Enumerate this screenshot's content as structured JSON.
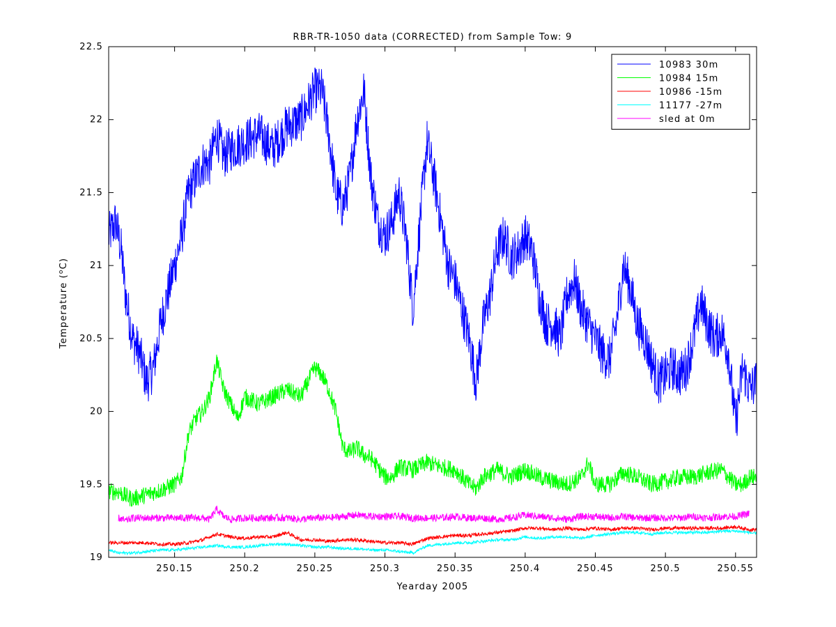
{
  "chart_data": {
    "type": "line",
    "title": "RBR-TR-1050 data (CORRECTED) from Sample Tow: 9",
    "xlabel": "Yearday 2005",
    "ylabel_main": "Temperature (",
    "ylabel_sup": "o",
    "ylabel_end": "C)",
    "xlim": [
      250.103,
      250.565
    ],
    "ylim": [
      19.0,
      22.5
    ],
    "x_ticks": [
      {
        "value": 250.15,
        "label": "250.15"
      },
      {
        "value": 250.2,
        "label": "250.2"
      },
      {
        "value": 250.25,
        "label": "250.25"
      },
      {
        "value": 250.3,
        "label": "250.3"
      },
      {
        "value": 250.35,
        "label": "250.35"
      },
      {
        "value": 250.4,
        "label": "250.4"
      },
      {
        "value": 250.45,
        "label": "250.45"
      },
      {
        "value": 250.5,
        "label": "250.5"
      },
      {
        "value": 250.55,
        "label": "250.55"
      }
    ],
    "y_ticks": [
      {
        "value": 19.0,
        "label": "19"
      },
      {
        "value": 19.5,
        "label": "19.5"
      },
      {
        "value": 20.0,
        "label": "20"
      },
      {
        "value": 20.5,
        "label": "20.5"
      },
      {
        "value": 21.0,
        "label": "21"
      },
      {
        "value": 21.5,
        "label": "21.5"
      },
      {
        "value": 22.0,
        "label": "22"
      },
      {
        "value": 22.5,
        "label": "22.5"
      }
    ],
    "grid": false,
    "legend_position": "top-right",
    "series": [
      {
        "name": "10983 30m",
        "color": "#0000ff",
        "noise": 0.16,
        "x": [
          250.103,
          250.108,
          250.112,
          250.115,
          250.12,
          250.125,
          250.13,
          250.135,
          250.14,
          250.145,
          250.15,
          250.155,
          250.16,
          250.165,
          250.17,
          250.175,
          250.18,
          250.185,
          250.19,
          250.2,
          250.21,
          250.22,
          250.23,
          250.24,
          250.25,
          250.255,
          250.26,
          250.265,
          250.27,
          250.275,
          250.28,
          250.285,
          250.29,
          250.295,
          250.3,
          250.305,
          250.31,
          250.315,
          250.32,
          250.325,
          250.33,
          250.335,
          250.34,
          250.345,
          250.35,
          250.355,
          250.36,
          250.365,
          250.37,
          250.375,
          250.38,
          250.385,
          250.39,
          250.395,
          250.4,
          250.405,
          250.41,
          250.415,
          250.42,
          250.425,
          250.43,
          250.435,
          250.44,
          250.445,
          250.45,
          250.455,
          250.46,
          250.465,
          250.47,
          250.475,
          250.48,
          250.485,
          250.49,
          250.495,
          250.5,
          250.505,
          250.51,
          250.515,
          250.52,
          250.525,
          250.53,
          250.535,
          250.54,
          250.545,
          250.55,
          250.555,
          250.56,
          250.565
        ],
        "y": [
          21.2,
          21.3,
          21.1,
          20.8,
          20.5,
          20.4,
          20.2,
          20.3,
          20.6,
          20.8,
          21.0,
          21.2,
          21.5,
          21.6,
          21.7,
          21.7,
          21.9,
          21.75,
          21.8,
          21.85,
          21.9,
          21.8,
          21.95,
          22.0,
          22.2,
          22.2,
          21.9,
          21.5,
          21.4,
          21.6,
          22.0,
          22.2,
          21.6,
          21.3,
          21.2,
          21.3,
          21.5,
          21.2,
          20.7,
          21.3,
          21.85,
          21.6,
          21.3,
          21.0,
          20.9,
          20.7,
          20.5,
          20.2,
          20.6,
          20.8,
          21.1,
          21.2,
          21.05,
          21.1,
          21.2,
          21.1,
          20.8,
          20.6,
          20.6,
          20.5,
          20.8,
          20.9,
          20.7,
          20.6,
          20.5,
          20.4,
          20.35,
          20.6,
          21.0,
          20.85,
          20.6,
          20.5,
          20.35,
          20.2,
          20.25,
          20.3,
          20.25,
          20.3,
          20.5,
          20.75,
          20.6,
          20.5,
          20.55,
          20.4,
          19.9,
          20.3,
          20.15,
          20.2
        ]
      },
      {
        "name": "10984 15m",
        "color": "#00ff00",
        "noise": 0.06,
        "x": [
          250.103,
          250.11,
          250.115,
          250.12,
          250.13,
          250.14,
          250.15,
          250.155,
          250.16,
          250.165,
          250.17,
          250.175,
          250.18,
          250.185,
          250.19,
          250.195,
          250.2,
          250.21,
          250.22,
          250.23,
          250.24,
          250.25,
          250.255,
          250.26,
          250.265,
          250.27,
          250.275,
          250.28,
          250.285,
          250.29,
          250.3,
          250.305,
          250.31,
          250.32,
          250.33,
          250.34,
          250.35,
          250.36,
          250.365,
          250.37,
          250.38,
          250.39,
          250.4,
          250.41,
          250.42,
          250.43,
          250.44,
          250.445,
          250.45,
          250.46,
          250.47,
          250.48,
          250.49,
          250.5,
          250.51,
          250.52,
          250.53,
          250.54,
          250.55,
          250.555,
          250.56,
          250.565
        ],
        "y": [
          19.45,
          19.45,
          19.42,
          19.4,
          19.43,
          19.46,
          19.5,
          19.55,
          19.85,
          19.95,
          20.0,
          20.1,
          20.35,
          20.15,
          20.05,
          19.95,
          20.1,
          20.05,
          20.1,
          20.15,
          20.1,
          20.3,
          20.25,
          20.15,
          20.0,
          19.75,
          19.72,
          19.75,
          19.7,
          19.68,
          19.55,
          19.55,
          19.62,
          19.6,
          19.65,
          19.62,
          19.6,
          19.5,
          19.47,
          19.55,
          19.6,
          19.55,
          19.6,
          19.55,
          19.52,
          19.5,
          19.55,
          19.65,
          19.5,
          19.5,
          19.58,
          19.55,
          19.5,
          19.52,
          19.55,
          19.55,
          19.58,
          19.6,
          19.5,
          19.5,
          19.55,
          19.55
        ]
      },
      {
        "name": "10986 -15m",
        "color": "#ff0000",
        "noise": 0.012,
        "x": [
          250.103,
          250.11,
          250.12,
          250.13,
          250.14,
          250.15,
          250.16,
          250.17,
          250.18,
          250.19,
          250.2,
          250.21,
          250.22,
          250.23,
          250.24,
          250.25,
          250.26,
          250.27,
          250.28,
          250.29,
          250.3,
          250.31,
          250.32,
          250.33,
          250.34,
          250.35,
          250.36,
          250.37,
          250.38,
          250.39,
          250.4,
          250.41,
          250.42,
          250.43,
          250.44,
          250.45,
          250.46,
          250.47,
          250.48,
          250.49,
          250.5,
          250.51,
          250.52,
          250.53,
          250.54,
          250.55,
          250.56,
          250.565
        ],
        "y": [
          19.1,
          19.1,
          19.1,
          19.1,
          19.09,
          19.09,
          19.1,
          19.12,
          19.16,
          19.14,
          19.13,
          19.14,
          19.14,
          19.17,
          19.12,
          19.12,
          19.11,
          19.12,
          19.12,
          19.11,
          19.1,
          19.1,
          19.09,
          19.13,
          19.14,
          19.15,
          19.15,
          19.16,
          19.17,
          19.18,
          19.2,
          19.2,
          19.19,
          19.2,
          19.19,
          19.2,
          19.19,
          19.2,
          19.2,
          19.19,
          19.2,
          19.2,
          19.2,
          19.2,
          19.2,
          19.21,
          19.19,
          19.19
        ]
      },
      {
        "name": "11177 -27m",
        "color": "#00ffff",
        "noise": 0.01,
        "x": [
          250.103,
          250.11,
          250.12,
          250.13,
          250.14,
          250.15,
          250.16,
          250.17,
          250.18,
          250.19,
          250.2,
          250.21,
          250.22,
          250.23,
          250.24,
          250.25,
          250.26,
          250.27,
          250.28,
          250.29,
          250.3,
          250.31,
          250.32,
          250.33,
          250.34,
          250.35,
          250.36,
          250.37,
          250.38,
          250.39,
          250.4,
          250.41,
          250.42,
          250.43,
          250.44,
          250.45,
          250.46,
          250.47,
          250.48,
          250.49,
          250.5,
          250.51,
          250.52,
          250.53,
          250.54,
          250.55,
          250.56,
          250.565
        ],
        "y": [
          19.05,
          19.03,
          19.03,
          19.04,
          19.05,
          19.05,
          19.06,
          19.07,
          19.08,
          19.07,
          19.07,
          19.08,
          19.09,
          19.09,
          19.08,
          19.07,
          19.07,
          19.06,
          19.06,
          19.05,
          19.05,
          19.04,
          19.03,
          19.08,
          19.09,
          19.1,
          19.1,
          19.11,
          19.12,
          19.12,
          19.14,
          19.13,
          19.14,
          19.14,
          19.13,
          19.15,
          19.16,
          19.17,
          19.17,
          19.16,
          19.17,
          19.17,
          19.17,
          19.17,
          19.18,
          19.18,
          19.17,
          19.16
        ]
      },
      {
        "name": "sled at 0m",
        "color": "#ff00ff",
        "noise": 0.025,
        "x": [
          250.11,
          250.115,
          250.12,
          250.13,
          250.14,
          250.15,
          250.16,
          250.17,
          250.175,
          250.18,
          250.185,
          250.19,
          250.2,
          250.21,
          250.22,
          250.23,
          250.24,
          250.25,
          250.26,
          250.27,
          250.28,
          250.29,
          250.3,
          250.31,
          250.32,
          250.33,
          250.34,
          250.35,
          250.36,
          250.37,
          250.38,
          250.39,
          250.4,
          250.41,
          250.42,
          250.43,
          250.44,
          250.45,
          250.46,
          250.47,
          250.48,
          250.49,
          250.5,
          250.51,
          250.52,
          250.53,
          250.54,
          250.55,
          250.56
        ],
        "y": [
          19.27,
          19.25,
          19.27,
          19.27,
          19.27,
          19.27,
          19.27,
          19.27,
          19.26,
          19.33,
          19.28,
          19.26,
          19.27,
          19.27,
          19.27,
          19.27,
          19.26,
          19.27,
          19.27,
          19.28,
          19.29,
          19.28,
          19.28,
          19.28,
          19.27,
          19.27,
          19.27,
          19.28,
          19.27,
          19.27,
          19.26,
          19.27,
          19.29,
          19.28,
          19.27,
          19.26,
          19.28,
          19.28,
          19.27,
          19.28,
          19.27,
          19.27,
          19.27,
          19.27,
          19.28,
          19.27,
          19.28,
          19.28,
          19.3
        ]
      }
    ]
  }
}
